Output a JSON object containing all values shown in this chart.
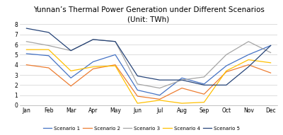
{
  "title": "Yunnan’s Thermal Power Generation under Different Scenarios\n(Unit: TWh)",
  "months": [
    "Jan",
    "Feb",
    "Mar",
    "Apr",
    "May",
    "Jun",
    "Jul",
    "Aug",
    "Sep",
    "Oct",
    "Nov",
    "Dec"
  ],
  "scenarios": {
    "Scenario 1": [
      5.1,
      4.9,
      2.7,
      4.3,
      5.0,
      1.5,
      1.0,
      2.7,
      2.1,
      3.9,
      5.0,
      5.9
    ],
    "Scenario 2": [
      4.0,
      3.7,
      1.9,
      3.6,
      4.0,
      0.9,
      0.6,
      1.7,
      1.1,
      3.3,
      4.0,
      3.2
    ],
    "Scenario 3": [
      6.3,
      5.9,
      5.4,
      6.5,
      6.3,
      2.1,
      1.7,
      2.5,
      2.8,
      5.0,
      6.3,
      5.2
    ],
    "Scenario 4": [
      5.5,
      5.5,
      3.4,
      3.8,
      3.9,
      0.2,
      0.5,
      0.2,
      0.3,
      3.4,
      4.5,
      4.2
    ],
    "Scenario 5": [
      7.6,
      7.2,
      5.4,
      6.5,
      6.3,
      2.9,
      2.5,
      2.5,
      2.0,
      2.0,
      3.8,
      5.9
    ]
  },
  "colors": {
    "Scenario 1": "#4472C4",
    "Scenario 2": "#ED7D31",
    "Scenario 3": "#A5A5A5",
    "Scenario 4": "#FFC000",
    "Scenario 5": "#264478"
  },
  "ylim": [
    0,
    8
  ],
  "yticks": [
    0,
    1,
    2,
    3,
    4,
    5,
    6,
    7,
    8
  ],
  "background_color": "#ffffff",
  "title_fontsize": 7.5
}
